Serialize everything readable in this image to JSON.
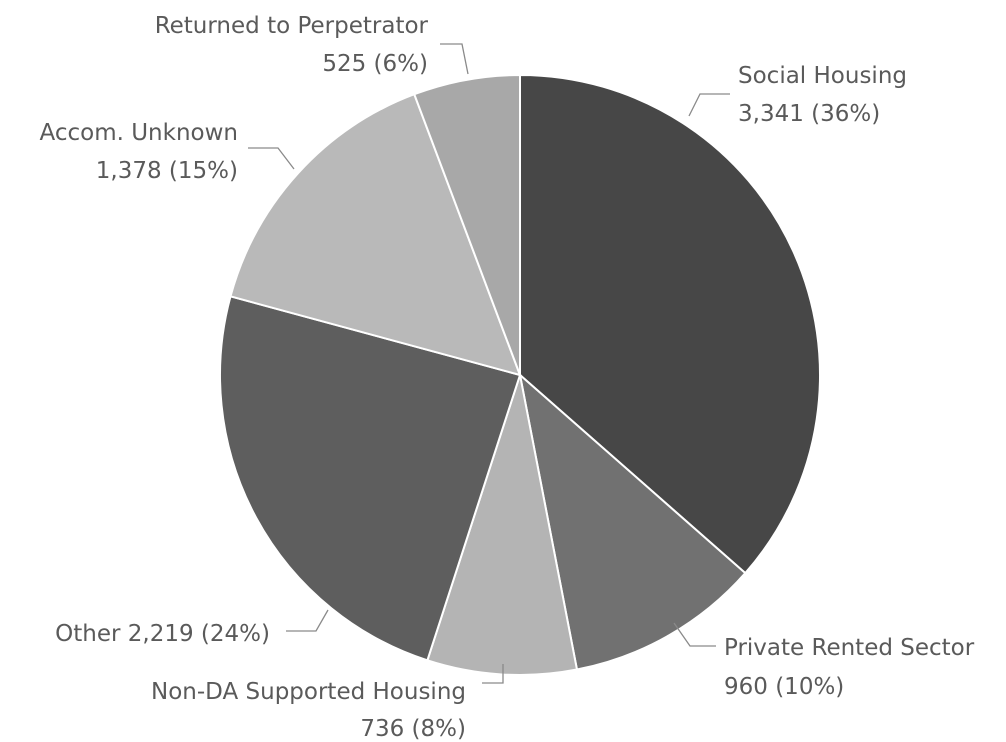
{
  "chart_data": {
    "type": "pie",
    "title": "",
    "start_angle_deg": 0,
    "direction": "clockwise",
    "slices": [
      {
        "label": "Social Housing",
        "value": 3341,
        "value_text": "3,341",
        "percent_text": "(36%)",
        "color": "#474747"
      },
      {
        "label": "Private Rented Sector",
        "value": 960,
        "value_text": "960",
        "percent_text": "(10%)",
        "color": "#717171"
      },
      {
        "label": "Non-DA Supported Housing",
        "value": 736,
        "value_text": "736",
        "percent_text": "(8%)",
        "color": "#b4b4b4"
      },
      {
        "label": "Other",
        "value": 2219,
        "value_text": "2,219",
        "percent_text": "(24%)",
        "color": "#5e5e5e"
      },
      {
        "label": "Accom. Unknown",
        "value": 1378,
        "value_text": "1,378",
        "percent_text": "(15%)",
        "color": "#b9b9b9"
      },
      {
        "label": "Returned to Perpetrator",
        "value": 525,
        "value_text": "525",
        "percent_text": "(6%)",
        "color": "#a8a8a8"
      }
    ]
  }
}
